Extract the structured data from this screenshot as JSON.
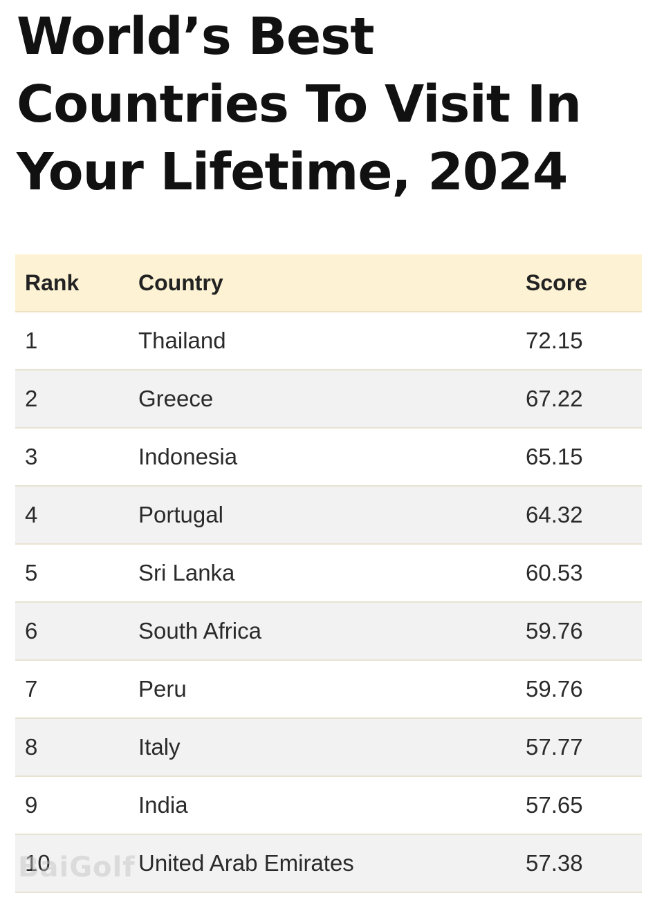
{
  "title": "World’s Best Countries To Visit In Your Lifetime, 2024",
  "table": {
    "headers": {
      "rank": "Rank",
      "country": "Country",
      "score": "Score"
    },
    "rows": [
      {
        "rank": "1",
        "country": "Thailand",
        "score": "72.15"
      },
      {
        "rank": "2",
        "country": "Greece",
        "score": "67.22"
      },
      {
        "rank": "3",
        "country": "Indonesia",
        "score": "65.15"
      },
      {
        "rank": "4",
        "country": "Portugal",
        "score": "64.32"
      },
      {
        "rank": "5",
        "country": "Sri Lanka",
        "score": "60.53"
      },
      {
        "rank": "6",
        "country": "South Africa",
        "score": "59.76"
      },
      {
        "rank": "7",
        "country": "Peru",
        "score": "59.76"
      },
      {
        "rank": "8",
        "country": "Italy",
        "score": "57.77"
      },
      {
        "rank": "9",
        "country": "India",
        "score": "57.65"
      },
      {
        "rank": "10",
        "country": "United Arab Emirates",
        "score": "57.38"
      }
    ]
  },
  "watermark": "BaiGolf",
  "colors": {
    "header_bg": "#fdf3d4",
    "stripe_bg": "#f2f2f2",
    "row_bg": "#ffffff",
    "divider": "#e7e2d2"
  }
}
